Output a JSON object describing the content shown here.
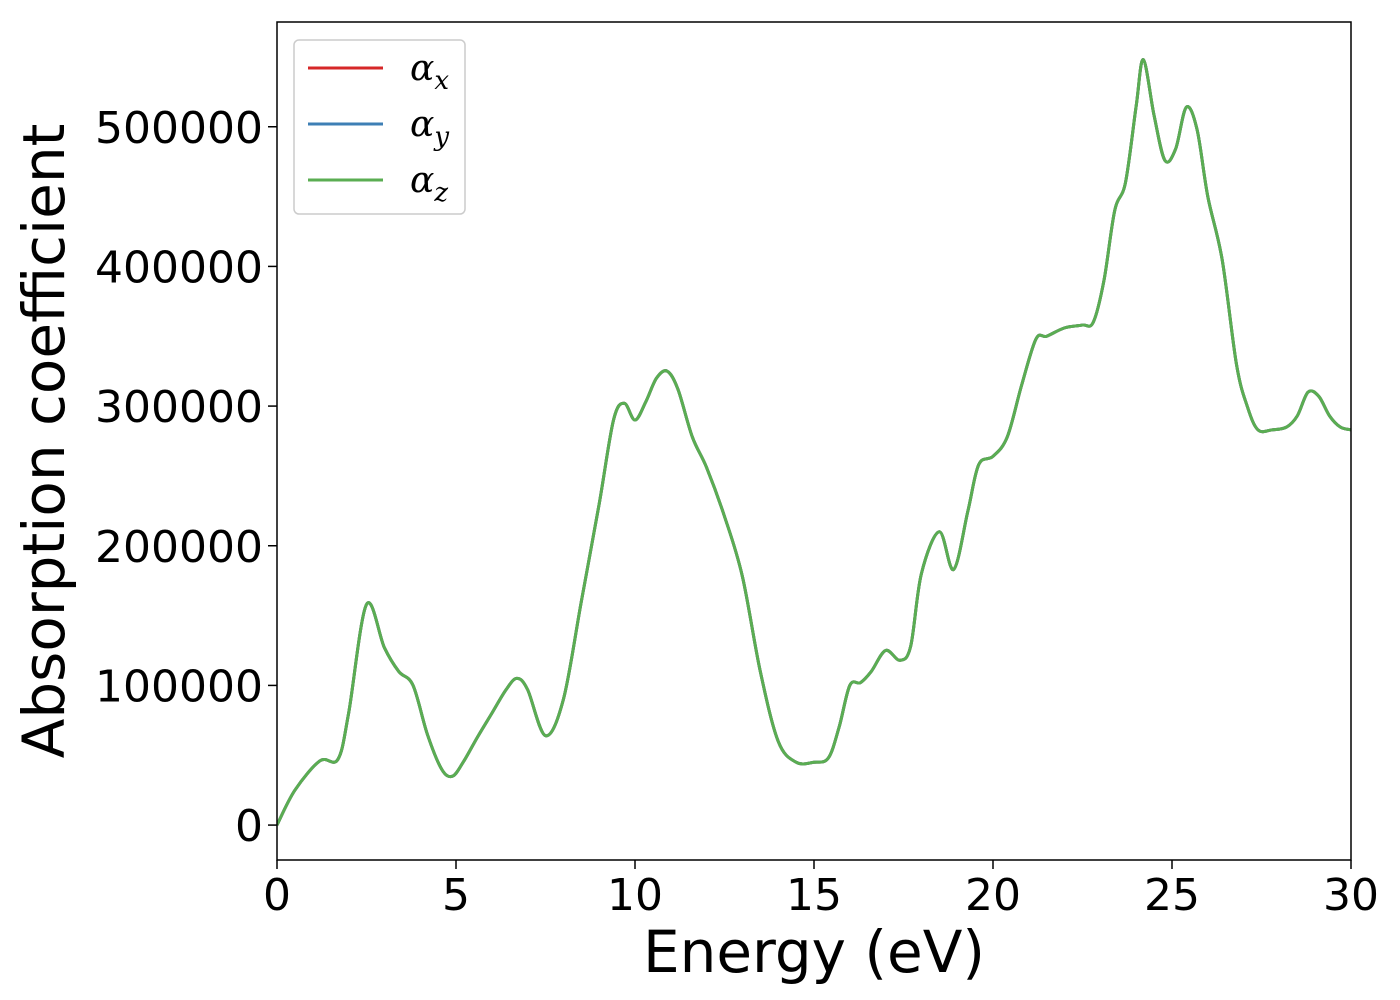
{
  "chart_data": {
    "type": "line",
    "title": "",
    "xlabel": "Energy (eV)",
    "ylabel": "Absorption coefficient",
    "xlim": [
      0,
      30
    ],
    "ylim": [
      -25000,
      575000
    ],
    "xticks": [
      0,
      5,
      10,
      15,
      20,
      25,
      30
    ],
    "yticks": [
      0,
      100000,
      200000,
      300000,
      400000,
      500000
    ],
    "grid": false,
    "legend_position": "upper-left",
    "x": [
      0,
      0.5,
      1.2,
      1.7,
      2.0,
      2.5,
      3.0,
      3.4,
      3.8,
      4.2,
      4.6,
      4.9,
      5.2,
      5.6,
      6.0,
      6.4,
      6.7,
      7.0,
      7.5,
      8.0,
      8.5,
      9.0,
      9.4,
      9.7,
      10.0,
      10.3,
      10.6,
      10.9,
      11.2,
      11.6,
      12.0,
      12.5,
      13.0,
      13.5,
      14.0,
      14.5,
      15.0,
      15.4,
      15.7,
      16.0,
      16.3,
      16.6,
      17.0,
      17.4,
      17.7,
      18.0,
      18.5,
      18.9,
      19.3,
      19.6,
      20.0,
      20.4,
      20.8,
      21.2,
      21.5,
      22.0,
      22.5,
      22.8,
      23.1,
      23.4,
      23.7,
      24.0,
      24.2,
      24.5,
      24.8,
      25.1,
      25.4,
      25.7,
      26.0,
      26.4,
      26.8,
      27.1,
      27.4,
      27.8,
      28.2,
      28.5,
      28.8,
      29.1,
      29.4,
      29.7,
      30.0
    ],
    "series": [
      {
        "name": "α_x",
        "color": "#d62728",
        "values": [
          0,
          25000,
          46000,
          47000,
          80000,
          158000,
          127000,
          110000,
          100000,
          65000,
          40000,
          35000,
          45000,
          63000,
          80000,
          97000,
          105000,
          97000,
          64000,
          90000,
          160000,
          230000,
          290000,
          302000,
          290000,
          303000,
          320000,
          325000,
          312000,
          278000,
          256000,
          221000,
          178000,
          110000,
          60000,
          45000,
          45000,
          48000,
          70000,
          100000,
          102000,
          110000,
          125000,
          118000,
          128000,
          180000,
          210000,
          183000,
          225000,
          258000,
          264000,
          278000,
          315000,
          348000,
          350000,
          356000,
          358000,
          360000,
          390000,
          440000,
          460000,
          515000,
          548000,
          508000,
          476000,
          484000,
          514000,
          498000,
          450000,
          405000,
          330000,
          300000,
          283000,
          283000,
          285000,
          293000,
          310000,
          307000,
          293000,
          285000,
          283000
        ]
      },
      {
        "name": "α_y",
        "color": "#3e7fb5",
        "values": [
          0,
          25000,
          46000,
          47000,
          80000,
          158000,
          127000,
          110000,
          100000,
          65000,
          40000,
          35000,
          45000,
          63000,
          80000,
          97000,
          105000,
          97000,
          64000,
          90000,
          160000,
          230000,
          290000,
          302000,
          290000,
          303000,
          320000,
          325000,
          312000,
          278000,
          256000,
          221000,
          178000,
          110000,
          60000,
          45000,
          45000,
          48000,
          70000,
          100000,
          102000,
          110000,
          125000,
          118000,
          128000,
          180000,
          210000,
          183000,
          225000,
          258000,
          264000,
          278000,
          315000,
          348000,
          350000,
          356000,
          358000,
          360000,
          390000,
          440000,
          460000,
          515000,
          548000,
          508000,
          476000,
          484000,
          514000,
          498000,
          450000,
          405000,
          330000,
          300000,
          283000,
          283000,
          285000,
          293000,
          310000,
          307000,
          293000,
          285000,
          283000
        ]
      },
      {
        "name": "α_z",
        "color": "#5aad52",
        "values": [
          0,
          25000,
          46000,
          47000,
          80000,
          158000,
          127000,
          110000,
          100000,
          65000,
          40000,
          35000,
          45000,
          63000,
          80000,
          97000,
          105000,
          97000,
          64000,
          90000,
          160000,
          230000,
          290000,
          302000,
          290000,
          303000,
          320000,
          325000,
          312000,
          278000,
          256000,
          221000,
          178000,
          110000,
          60000,
          45000,
          45000,
          48000,
          70000,
          100000,
          102000,
          110000,
          125000,
          118000,
          128000,
          180000,
          210000,
          183000,
          225000,
          258000,
          264000,
          278000,
          315000,
          348000,
          350000,
          356000,
          358000,
          360000,
          390000,
          440000,
          460000,
          515000,
          548000,
          508000,
          476000,
          484000,
          514000,
          498000,
          450000,
          405000,
          330000,
          300000,
          283000,
          283000,
          285000,
          293000,
          310000,
          307000,
          293000,
          285000,
          283000
        ]
      }
    ]
  },
  "legend": [
    {
      "symbol": "α",
      "subscript": "x",
      "color": "#d62728"
    },
    {
      "symbol": "α",
      "subscript": "y",
      "color": "#3e7fb5"
    },
    {
      "symbol": "α",
      "subscript": "z",
      "color": "#5aad52"
    }
  ]
}
